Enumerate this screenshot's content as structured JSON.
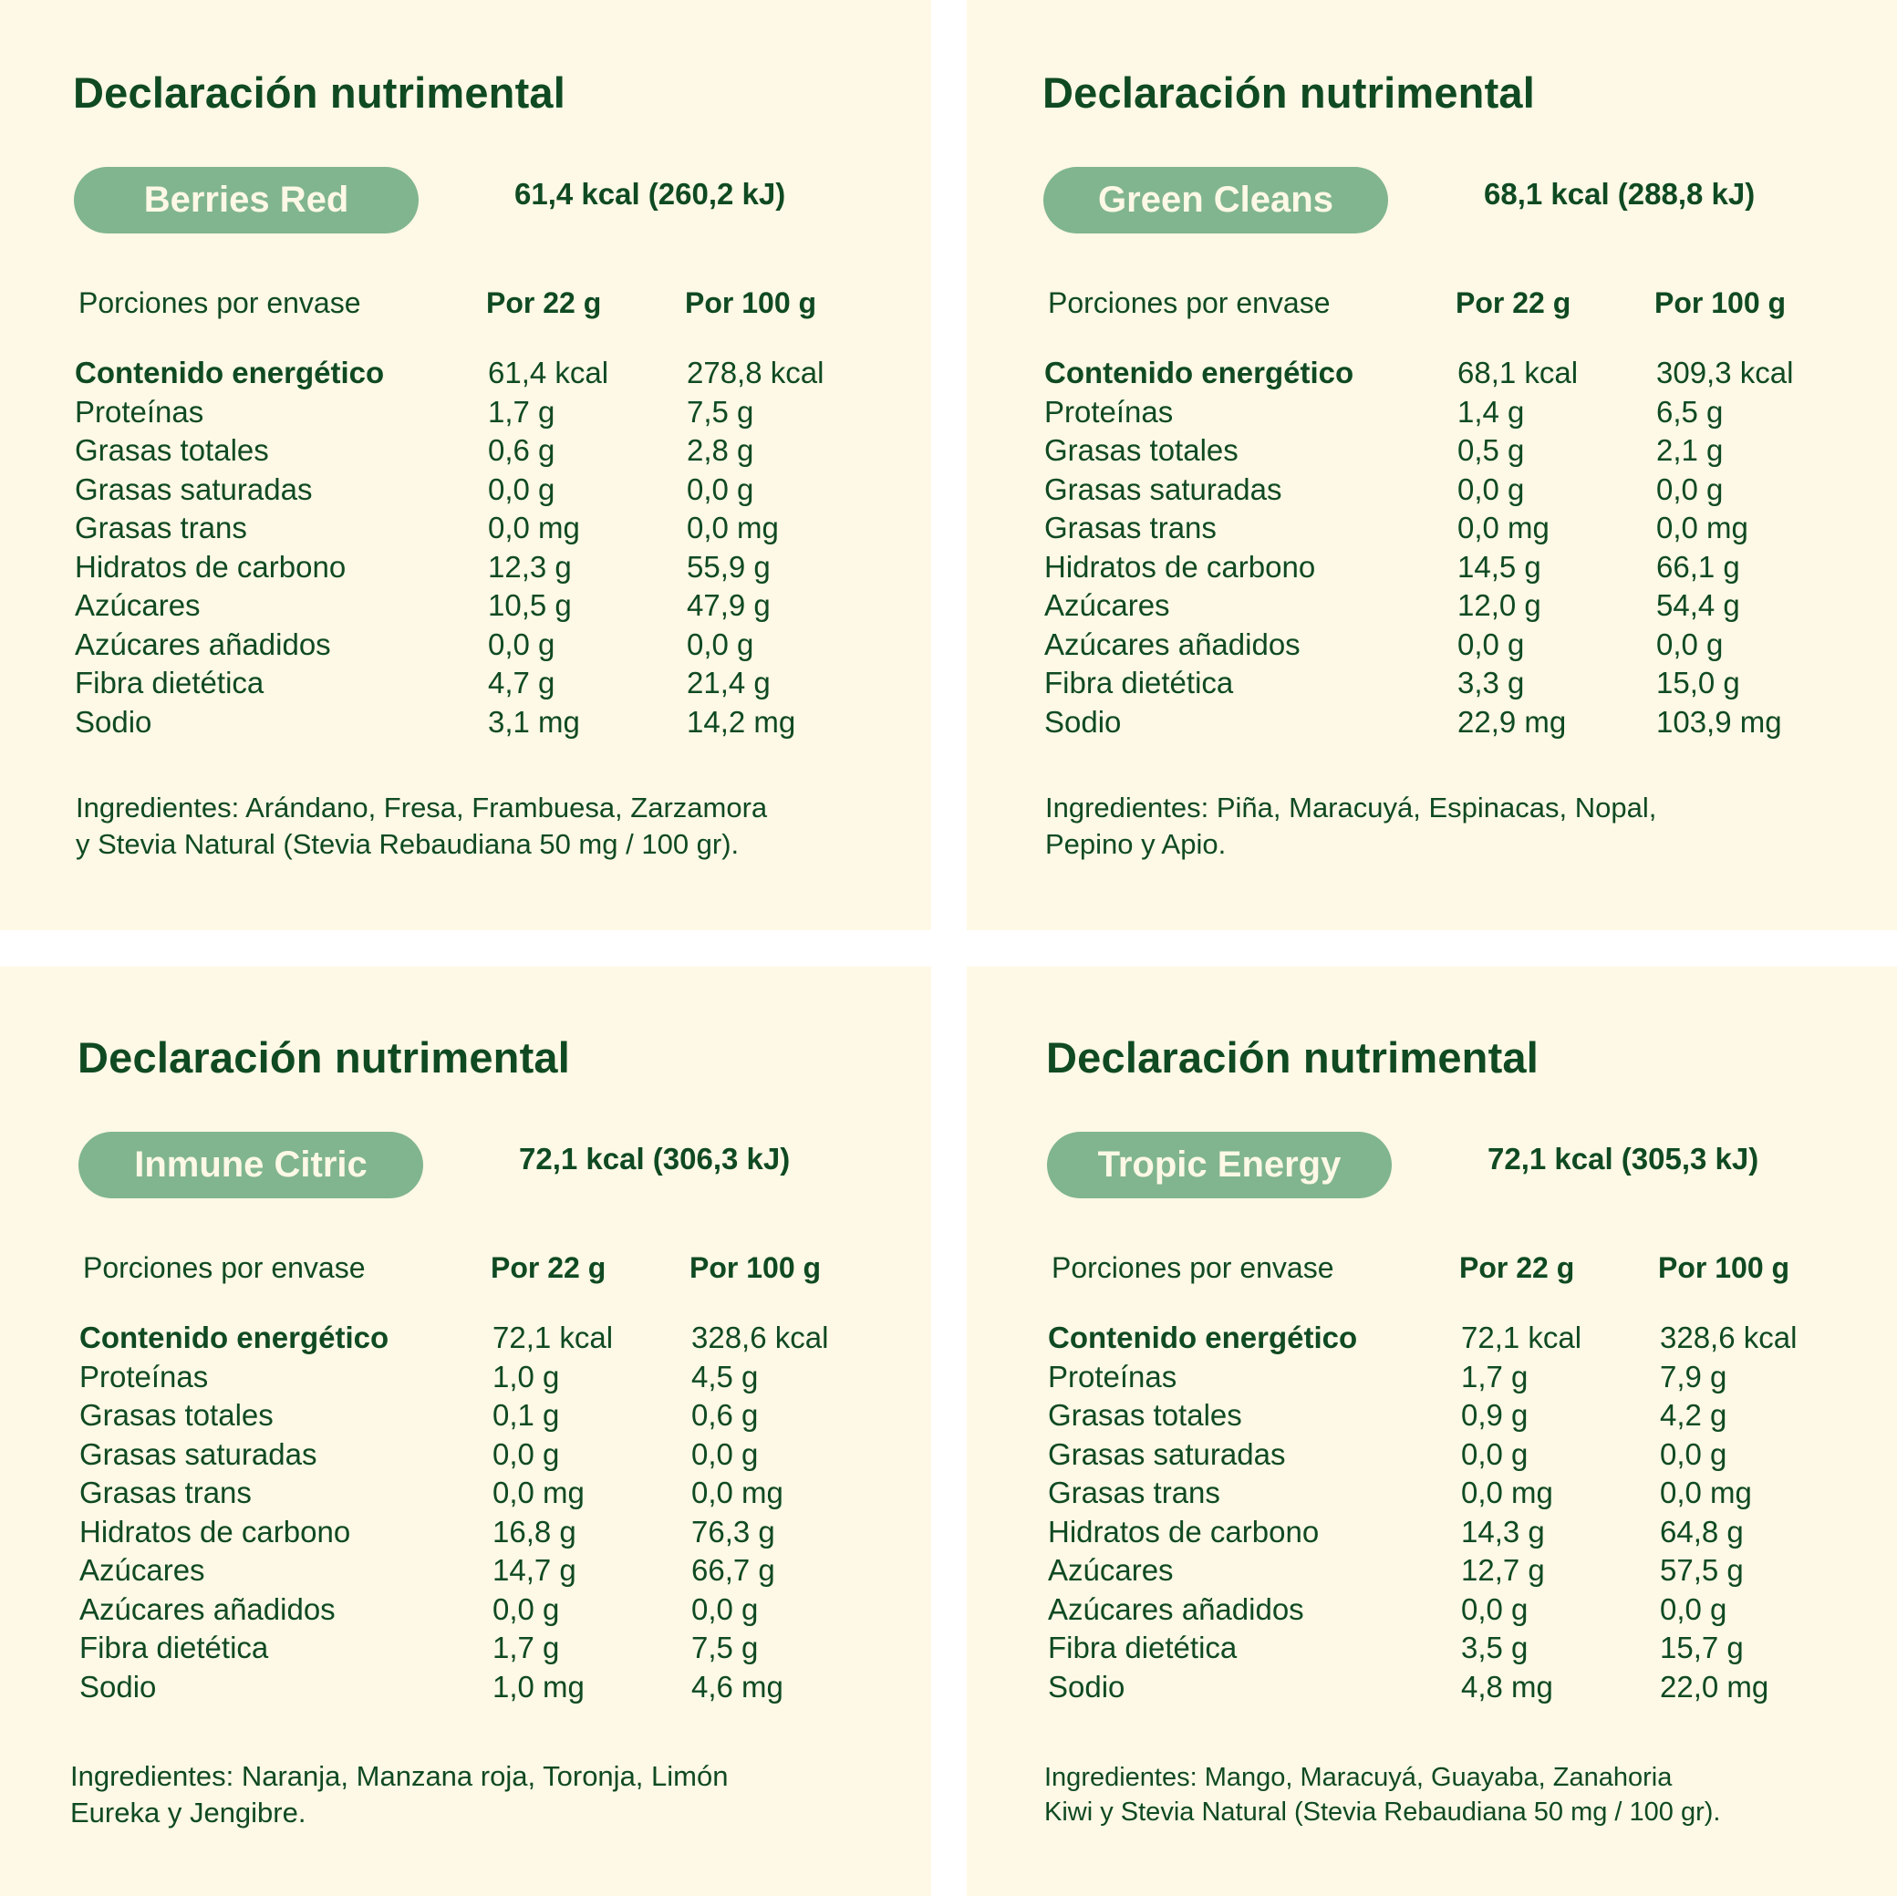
{
  "colors": {
    "text": "#0f4a22",
    "pill": "#80b58f",
    "panel_bg": "#fef8e6",
    "background": "#ffffff"
  },
  "panels": [
    {
      "title": "Declaración nutrimental",
      "product": "Berries Red",
      "energy": "61,4 kcal (260,2 kJ)",
      "header": {
        "portions": "Porciones por envase",
        "col1": "Por 22 g",
        "col2": "Por 100 g"
      },
      "rows": [
        {
          "label": "Contenido energético",
          "v1": "61,4 kcal",
          "v2": "278,8 kcal"
        },
        {
          "label": "Proteínas",
          "v1": "1,7 g",
          "v2": "7,5 g"
        },
        {
          "label": "Grasas totales",
          "v1": "0,6 g",
          "v2": "2,8 g"
        },
        {
          "label": "Grasas saturadas",
          "v1": "0,0 g",
          "v2": "0,0 g"
        },
        {
          "label": "Grasas trans",
          "v1": "0,0 mg",
          "v2": "0,0 mg"
        },
        {
          "label": "Hidratos de carbono",
          "v1": "12,3 g",
          "v2": "55,9 g"
        },
        {
          "label": "Azúcares",
          "v1": "10,5 g",
          "v2": "47,9 g"
        },
        {
          "label": "Azúcares añadidos",
          "v1": "0,0 g",
          "v2": "0,0 g"
        },
        {
          "label": "Fibra dietética",
          "v1": "4,7 g",
          "v2": "21,4 g"
        },
        {
          "label": "Sodio",
          "v1": "3,1 mg",
          "v2": "14,2 mg"
        }
      ],
      "ingredients": [
        "Ingredientes: Arándano, Fresa, Frambuesa, Zarzamora",
        "y Stevia Natural (Stevia Rebaudiana 50 mg / 100 gr)."
      ]
    },
    {
      "title": "Declaración nutrimental",
      "product": "Green Cleans",
      "energy": "68,1 kcal (288,8 kJ)",
      "header": {
        "portions": "Porciones por envase",
        "col1": "Por 22 g",
        "col2": "Por 100 g"
      },
      "rows": [
        {
          "label": "Contenido energético",
          "v1": "68,1 kcal",
          "v2": "309,3 kcal"
        },
        {
          "label": "Proteínas",
          "v1": "1,4 g",
          "v2": "6,5 g"
        },
        {
          "label": "Grasas totales",
          "v1": "0,5 g",
          "v2": "2,1 g"
        },
        {
          "label": "Grasas saturadas",
          "v1": "0,0 g",
          "v2": "0,0 g"
        },
        {
          "label": "Grasas trans",
          "v1": "0,0 mg",
          "v2": "0,0 mg"
        },
        {
          "label": "Hidratos de carbono",
          "v1": "14,5 g",
          "v2": "66,1 g"
        },
        {
          "label": "Azúcares",
          "v1": "12,0 g",
          "v2": "54,4 g"
        },
        {
          "label": "Azúcares añadidos",
          "v1": "0,0 g",
          "v2": "0,0 g"
        },
        {
          "label": "Fibra dietética",
          "v1": "3,3 g",
          "v2": "15,0 g"
        },
        {
          "label": "Sodio",
          "v1": "22,9 mg",
          "v2": "103,9 mg"
        }
      ],
      "ingredients": [
        "Ingredientes: Piña, Maracuyá, Espinacas, Nopal,",
        "Pepino y Apio."
      ]
    },
    {
      "title": "Declaración nutrimental",
      "product": "Inmune Citric",
      "energy": "72,1 kcal (306,3 kJ)",
      "header": {
        "portions": "Porciones por envase",
        "col1": "Por 22 g",
        "col2": "Por 100 g"
      },
      "rows": [
        {
          "label": "Contenido energético",
          "v1": "72,1 kcal",
          "v2": "328,6 kcal"
        },
        {
          "label": "Proteínas",
          "v1": "1,0 g",
          "v2": "4,5 g"
        },
        {
          "label": "Grasas totales",
          "v1": "0,1 g",
          "v2": "0,6 g"
        },
        {
          "label": "Grasas saturadas",
          "v1": "0,0 g",
          "v2": "0,0 g"
        },
        {
          "label": "Grasas trans",
          "v1": "0,0 mg",
          "v2": "0,0 mg"
        },
        {
          "label": "Hidratos de carbono",
          "v1": "16,8 g",
          "v2": "76,3 g"
        },
        {
          "label": "Azúcares",
          "v1": "14,7 g",
          "v2": "66,7 g"
        },
        {
          "label": "Azúcares añadidos",
          "v1": "0,0 g",
          "v2": "0,0 g"
        },
        {
          "label": "Fibra dietética",
          "v1": "1,7 g",
          "v2": "7,5 g"
        },
        {
          "label": "Sodio",
          "v1": "1,0 mg",
          "v2": "4,6 mg"
        }
      ],
      "ingredients": [
        "Ingredientes: Naranja, Manzana roja, Toronja, Limón",
        "Eureka y Jengibre."
      ]
    },
    {
      "title": "Declaración nutrimental",
      "product": "Tropic Energy",
      "energy": "72,1 kcal (305,3 kJ)",
      "header": {
        "portions": "Porciones por envase",
        "col1": "Por 22 g",
        "col2": "Por 100 g"
      },
      "rows": [
        {
          "label": "Contenido energético",
          "v1": "72,1 kcal",
          "v2": "328,6 kcal"
        },
        {
          "label": "Proteínas",
          "v1": "1,7 g",
          "v2": "7,9 g"
        },
        {
          "label": "Grasas totales",
          "v1": "0,9 g",
          "v2": "4,2 g"
        },
        {
          "label": "Grasas saturadas",
          "v1": "0,0 g",
          "v2": "0,0 g"
        },
        {
          "label": "Grasas trans",
          "v1": "0,0 mg",
          "v2": "0,0 mg"
        },
        {
          "label": "Hidratos de carbono",
          "v1": "14,3 g",
          "v2": "64,8 g"
        },
        {
          "label": "Azúcares",
          "v1": "12,7 g",
          "v2": "57,5 g"
        },
        {
          "label": "Azúcares añadidos",
          "v1": "0,0 g",
          "v2": "0,0 g"
        },
        {
          "label": "Fibra dietética",
          "v1": "3,5 g",
          "v2": "15,7 g"
        },
        {
          "label": "Sodio",
          "v1": "4,8 mg",
          "v2": "22,0 mg"
        }
      ],
      "ingredients": [
        "Ingredientes: Mango, Maracuyá, Guayaba, Zanahoria",
        "Kiwi y Stevia Natural (Stevia Rebaudiana 50 mg / 100 gr)."
      ]
    }
  ]
}
